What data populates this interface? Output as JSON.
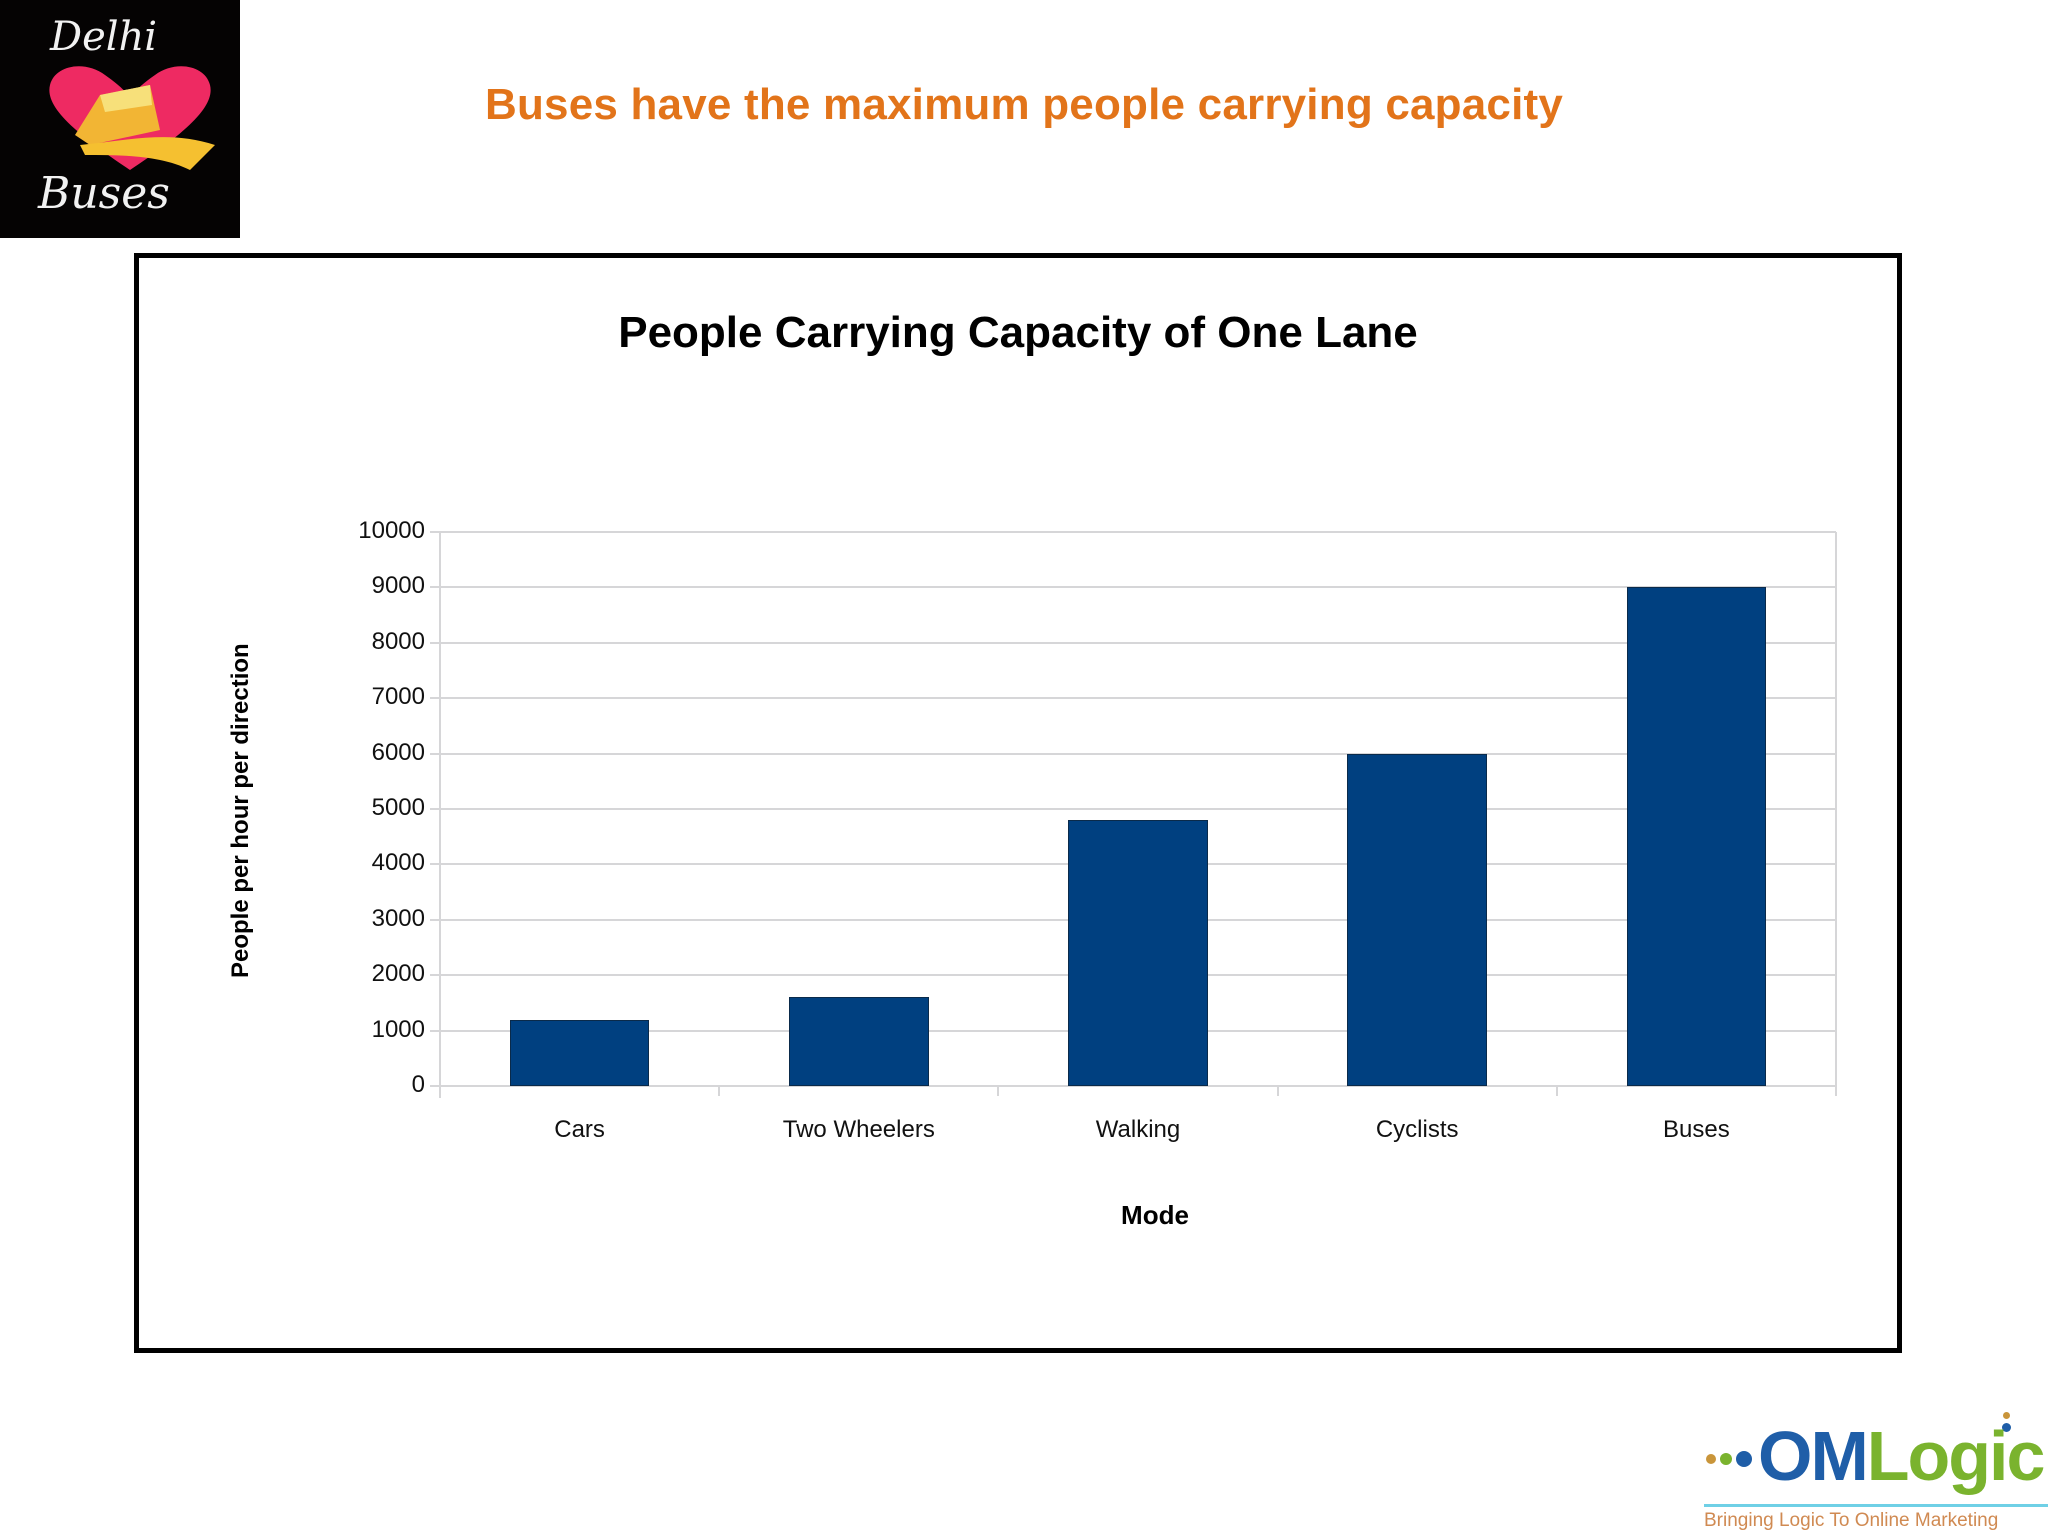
{
  "slide": {
    "headline": "Buses have the maximum people carrying capacity",
    "headline_color": "#e2741a"
  },
  "logo_left": {
    "line1": "Delhi",
    "line2": "Buses",
    "icon": "heart-bus-icon"
  },
  "logo_right": {
    "brand_om": "OM",
    "brand_logic": "Logic",
    "tagline": "Bringing Logic To Online Marketing"
  },
  "chart": {
    "title": "People Carrying Capacity of One Lane",
    "xlabel": "Mode",
    "ylabel": "People per hour per direction",
    "yticks": [
      "0",
      "1000",
      "2000",
      "3000",
      "4000",
      "5000",
      "6000",
      "7000",
      "8000",
      "9000",
      "10000"
    ],
    "categories": [
      "Cars",
      "Two Wheelers",
      "Walking",
      "Cyclists",
      "Buses"
    ],
    "bar_color": "#004080"
  },
  "chart_data": {
    "type": "bar",
    "title": "People Carrying Capacity of One Lane",
    "xlabel": "Mode",
    "ylabel": "People per hour per direction",
    "categories": [
      "Cars",
      "Two Wheelers",
      "Walking",
      "Cyclists",
      "Buses"
    ],
    "values": [
      1200,
      1600,
      4800,
      6000,
      9000
    ],
    "ylim": [
      0,
      10000
    ],
    "yticks": [
      0,
      1000,
      2000,
      3000,
      4000,
      5000,
      6000,
      7000,
      8000,
      9000,
      10000
    ],
    "grid": true,
    "legend": null,
    "bar_color": "#004080"
  }
}
